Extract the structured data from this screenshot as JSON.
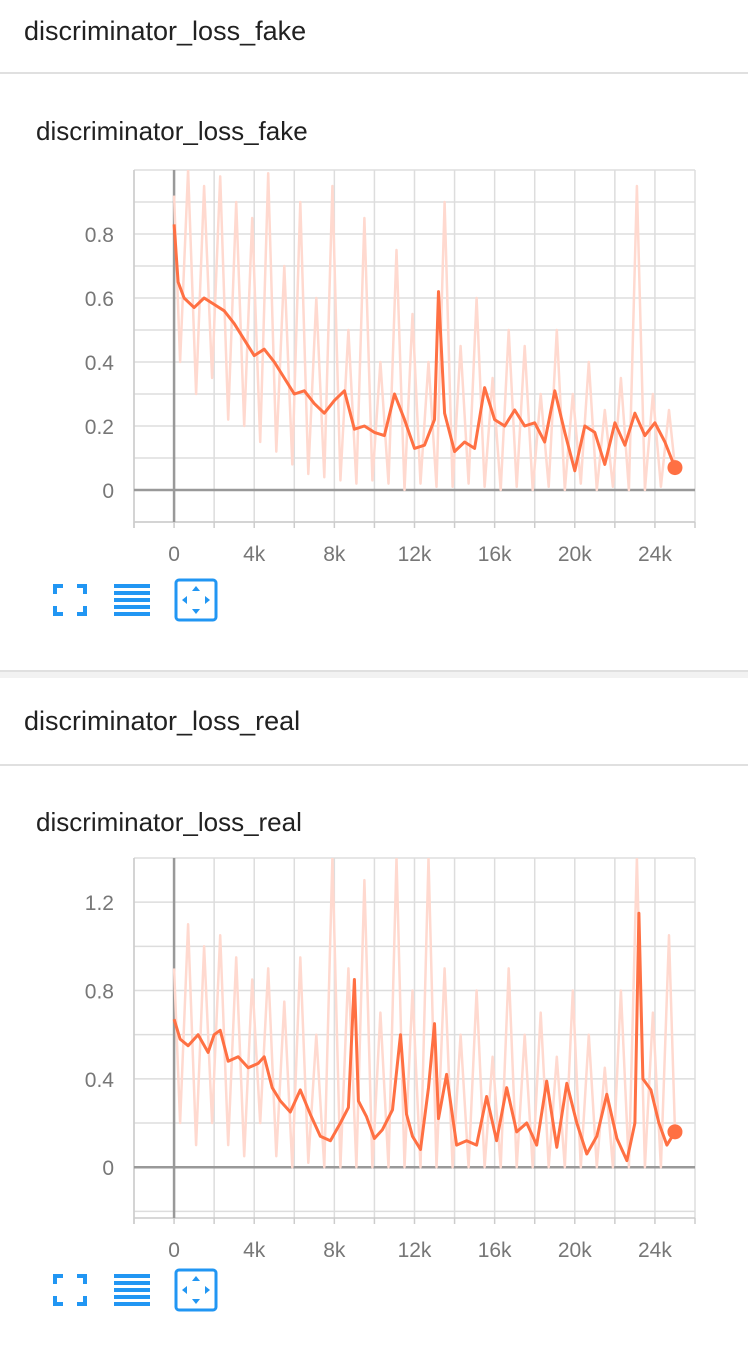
{
  "sections": [
    {
      "header": "discriminator_loss_fake",
      "card_title": "discriminator_loss_fake"
    },
    {
      "header": "discriminator_loss_real",
      "card_title": "discriminator_loss_real"
    }
  ],
  "toolbar_icons": [
    "fullscreen-icon",
    "data-table-icon",
    "fit-domain-icon"
  ],
  "colors": {
    "smoothed": "#ff7043",
    "raw": "#ffd9cf",
    "axis": "#999999",
    "grid": "#dddddd",
    "icon": "#2196f3"
  },
  "chart_data": [
    {
      "type": "line",
      "title": "discriminator_loss_fake",
      "x_ticks": [
        "0",
        "4k",
        "8k",
        "12k",
        "16k",
        "20k",
        "24k"
      ],
      "y_ticks": [
        "0",
        "0.2",
        "0.4",
        "0.6",
        "0.8"
      ],
      "xlim": [
        -2000,
        26000
      ],
      "ylim": [
        -0.1,
        1.0
      ],
      "grid": true,
      "series": [
        {
          "role": "smoothed",
          "x": [
            0,
            200,
            500,
            1000,
            1500,
            2000,
            2500,
            3000,
            3500,
            4000,
            4500,
            5000,
            5500,
            6000,
            6500,
            7000,
            7500,
            8000,
            8500,
            9000,
            9500,
            10000,
            10500,
            11000,
            11500,
            12000,
            12500,
            13000,
            13200,
            13500,
            14000,
            14500,
            15000,
            15500,
            16000,
            16500,
            17000,
            17500,
            18000,
            18500,
            19000,
            19500,
            20000,
            20500,
            21000,
            21500,
            22000,
            22500,
            23000,
            23500,
            24000,
            24500,
            25000
          ],
          "y": [
            0.83,
            0.65,
            0.6,
            0.57,
            0.6,
            0.58,
            0.56,
            0.52,
            0.47,
            0.42,
            0.44,
            0.4,
            0.35,
            0.3,
            0.31,
            0.27,
            0.24,
            0.28,
            0.31,
            0.19,
            0.2,
            0.18,
            0.17,
            0.3,
            0.22,
            0.13,
            0.14,
            0.22,
            0.62,
            0.24,
            0.12,
            0.15,
            0.13,
            0.32,
            0.22,
            0.2,
            0.25,
            0.2,
            0.21,
            0.15,
            0.31,
            0.18,
            0.06,
            0.2,
            0.18,
            0.08,
            0.21,
            0.14,
            0.24,
            0.17,
            0.21,
            0.15,
            0.07
          ]
        },
        {
          "role": "raw",
          "x": [
            0,
            300,
            700,
            1100,
            1500,
            1900,
            2300,
            2700,
            3100,
            3500,
            3900,
            4300,
            4700,
            5100,
            5500,
            5900,
            6300,
            6700,
            7100,
            7500,
            7900,
            8300,
            8700,
            9100,
            9500,
            9900,
            10300,
            10700,
            11100,
            11500,
            11900,
            12300,
            12700,
            13100,
            13500,
            13900,
            14300,
            14700,
            15100,
            15500,
            15900,
            16300,
            16700,
            17100,
            17500,
            17900,
            18300,
            18700,
            19100,
            19500,
            19900,
            20300,
            20700,
            21100,
            21500,
            21900,
            22300,
            22700,
            23100,
            23500,
            23900,
            24300,
            24700,
            25000
          ],
          "y": [
            0.92,
            0.4,
            1.0,
            0.3,
            0.95,
            0.35,
            0.98,
            0.22,
            0.9,
            0.2,
            0.85,
            0.15,
            0.99,
            0.12,
            0.7,
            0.08,
            0.9,
            0.05,
            0.6,
            0.04,
            0.95,
            0.03,
            0.5,
            0.02,
            0.85,
            0.03,
            0.4,
            0.02,
            0.75,
            0.0,
            0.55,
            0.02,
            0.4,
            0.01,
            0.9,
            0.01,
            0.45,
            0.02,
            0.6,
            0.01,
            0.35,
            0.0,
            0.5,
            0.01,
            0.45,
            0.0,
            0.3,
            0.01,
            0.5,
            0.0,
            0.3,
            0.02,
            0.4,
            0.0,
            0.25,
            0.01,
            0.35,
            0.0,
            0.95,
            0.0,
            0.3,
            0.01,
            0.25,
            0.07
          ]
        }
      ],
      "last_point": {
        "x": 25000,
        "y": 0.07
      }
    },
    {
      "type": "line",
      "title": "discriminator_loss_real",
      "x_ticks": [
        "0",
        "4k",
        "8k",
        "12k",
        "16k",
        "20k",
        "24k"
      ],
      "y_ticks": [
        "0",
        "0.4",
        "0.8",
        "1.2"
      ],
      "xlim": [
        -2000,
        26000
      ],
      "ylim": [
        -0.23,
        1.4
      ],
      "grid": true,
      "series": [
        {
          "role": "smoothed",
          "x": [
            0,
            300,
            700,
            1200,
            1700,
            2000,
            2300,
            2700,
            3200,
            3700,
            4200,
            4500,
            4900,
            5300,
            5800,
            6300,
            6800,
            7300,
            7800,
            8300,
            8700,
            9000,
            9200,
            9600,
            10000,
            10400,
            10900,
            11300,
            11600,
            11900,
            12300,
            12700,
            13000,
            13200,
            13600,
            14100,
            14600,
            15100,
            15600,
            16100,
            16600,
            17100,
            17600,
            18100,
            18600,
            19100,
            19600,
            20100,
            20600,
            21100,
            21600,
            22100,
            22600,
            23000,
            23200,
            23400,
            23800,
            24200,
            24600,
            25000
          ],
          "y": [
            0.67,
            0.58,
            0.55,
            0.6,
            0.52,
            0.6,
            0.62,
            0.48,
            0.5,
            0.45,
            0.47,
            0.5,
            0.36,
            0.3,
            0.25,
            0.35,
            0.24,
            0.14,
            0.12,
            0.2,
            0.27,
            0.85,
            0.3,
            0.23,
            0.13,
            0.17,
            0.26,
            0.6,
            0.24,
            0.14,
            0.08,
            0.36,
            0.65,
            0.22,
            0.42,
            0.1,
            0.12,
            0.1,
            0.32,
            0.12,
            0.36,
            0.16,
            0.2,
            0.1,
            0.39,
            0.09,
            0.38,
            0.2,
            0.06,
            0.14,
            0.33,
            0.13,
            0.03,
            0.2,
            1.15,
            0.4,
            0.35,
            0.2,
            0.1,
            0.16
          ]
        },
        {
          "role": "raw",
          "x": [
            0,
            300,
            700,
            1100,
            1500,
            1900,
            2300,
            2700,
            3100,
            3500,
            3900,
            4300,
            4700,
            5100,
            5500,
            5900,
            6300,
            6700,
            7100,
            7500,
            7900,
            8300,
            8700,
            9100,
            9500,
            9900,
            10300,
            10700,
            11100,
            11500,
            11900,
            12300,
            12700,
            13100,
            13500,
            13900,
            14300,
            14700,
            15100,
            15500,
            15900,
            16300,
            16700,
            17100,
            17500,
            17900,
            18300,
            18700,
            19100,
            19500,
            19900,
            20300,
            20700,
            21100,
            21500,
            21900,
            22300,
            22700,
            23100,
            23500,
            23900,
            24300,
            24700,
            25000
          ],
          "y": [
            0.9,
            0.2,
            1.1,
            0.1,
            1.0,
            0.2,
            1.05,
            0.1,
            0.95,
            0.05,
            0.85,
            0.2,
            0.9,
            0.05,
            0.75,
            0.0,
            0.95,
            0.02,
            0.6,
            0.0,
            1.4,
            0.0,
            0.9,
            0.0,
            1.3,
            0.0,
            0.7,
            0.0,
            1.4,
            0.0,
            0.8,
            0.0,
            1.4,
            0.0,
            0.9,
            0.0,
            0.6,
            0.0,
            0.8,
            0.0,
            0.5,
            0.0,
            0.9,
            0.0,
            0.6,
            0.0,
            0.7,
            0.0,
            0.5,
            0.0,
            0.8,
            0.0,
            0.6,
            0.0,
            0.45,
            0.0,
            0.8,
            0.0,
            1.4,
            0.0,
            0.7,
            0.0,
            1.05,
            0.16
          ]
        }
      ],
      "last_point": {
        "x": 25000,
        "y": 0.16
      }
    }
  ]
}
